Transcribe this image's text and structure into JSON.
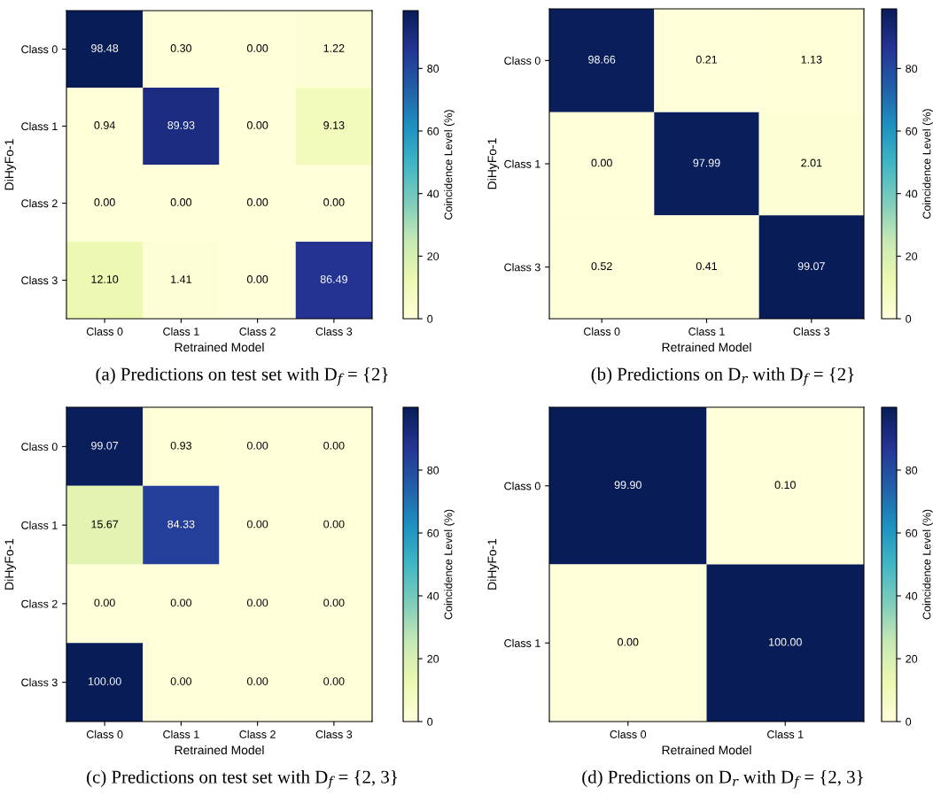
{
  "chart_data": [
    {
      "type": "heatmap",
      "title": "(a) Predictions on test set with D$_{f}$ = {2}",
      "xlabel": "Retrained Model",
      "ylabel": "DiHyFo-1",
      "clabel": "Coincidence Level (%)",
      "categories": [
        "Class 0",
        "Class 1",
        "Class 2",
        "Class 3"
      ],
      "y_categories": [
        "Class 0",
        "Class 1",
        "Class 2",
        "Class 3"
      ],
      "cells": [
        [
          98.48,
          0.3,
          0.0,
          1.22
        ],
        [
          0.94,
          89.93,
          0.0,
          9.13
        ],
        [
          0.0,
          0.0,
          0.0,
          0.0
        ],
        [
          12.1,
          1.41,
          0.0,
          86.49
        ]
      ],
      "cell_labels": [
        [
          "98.48",
          "0.30",
          "0.00",
          "1.22"
        ],
        [
          "0.94",
          "89.93",
          "0.00",
          "9.13"
        ],
        [
          "0.00",
          "0.00",
          "0.00",
          "0.00"
        ],
        [
          "12.10",
          "1.41",
          "0.00",
          "86.49"
        ]
      ],
      "clim": [
        0,
        98.48
      ],
      "cticks": [
        0,
        20,
        40,
        60,
        80
      ]
    },
    {
      "type": "heatmap",
      "title": "(b) Predictions on D$_{r}$ with D$_{f}$ = {2}",
      "xlabel": "Retrained Model",
      "ylabel": "DiHyFo-1",
      "clabel": "Coincidence Level (%)",
      "categories": [
        "Class 0",
        "Class 1",
        "Class 3"
      ],
      "y_categories": [
        "Class 0",
        "Class 1",
        "Class 3"
      ],
      "cells": [
        [
          98.66,
          0.21,
          1.13
        ],
        [
          0.0,
          97.99,
          2.01
        ],
        [
          0.52,
          0.41,
          99.07
        ]
      ],
      "cell_labels": [
        [
          "98.66",
          "0.21",
          "1.13"
        ],
        [
          "0.00",
          "97.99",
          "2.01"
        ],
        [
          "0.52",
          "0.41",
          "99.07"
        ]
      ],
      "clim": [
        0,
        99.07
      ],
      "cticks": [
        0,
        20,
        40,
        60,
        80
      ]
    },
    {
      "type": "heatmap",
      "title": "(c) Predictions on test set with D$_{f}$ = {2, 3}",
      "xlabel": "Retrained Model",
      "ylabel": "DiHyFo-1",
      "clabel": "Coincidence Level (%)",
      "categories": [
        "Class 0",
        "Class 1",
        "Class 2",
        "Class 3"
      ],
      "y_categories": [
        "Class 0",
        "Class 1",
        "Class 2",
        "Class 3"
      ],
      "cells": [
        [
          99.07,
          0.93,
          0.0,
          0.0
        ],
        [
          15.67,
          84.33,
          0.0,
          0.0
        ],
        [
          0.0,
          0.0,
          0.0,
          0.0
        ],
        [
          100.0,
          0.0,
          0.0,
          0.0
        ]
      ],
      "cell_labels": [
        [
          "99.07",
          "0.93",
          "0.00",
          "0.00"
        ],
        [
          "15.67",
          "84.33",
          "0.00",
          "0.00"
        ],
        [
          "0.00",
          "0.00",
          "0.00",
          "0.00"
        ],
        [
          "100.00",
          "0.00",
          "0.00",
          "0.00"
        ]
      ],
      "clim": [
        0,
        100
      ],
      "cticks": [
        0,
        20,
        40,
        60,
        80
      ]
    },
    {
      "type": "heatmap",
      "title": "(d) Predictions on D$_{r}$ with D$_{f}$ = {2, 3}",
      "xlabel": "Retrained Model",
      "ylabel": "DiHyFo-1",
      "clabel": "Coincidence Level (%)",
      "categories": [
        "Class 0",
        "Class 1"
      ],
      "y_categories": [
        "Class 0",
        "Class 1"
      ],
      "cells": [
        [
          99.9,
          0.1
        ],
        [
          0.0,
          100.0
        ]
      ],
      "cell_labels": [
        [
          "99.90",
          "0.10"
        ],
        [
          "0.00",
          "100.00"
        ]
      ],
      "clim": [
        0,
        100
      ],
      "cticks": [
        0,
        20,
        40,
        60,
        80
      ]
    }
  ]
}
